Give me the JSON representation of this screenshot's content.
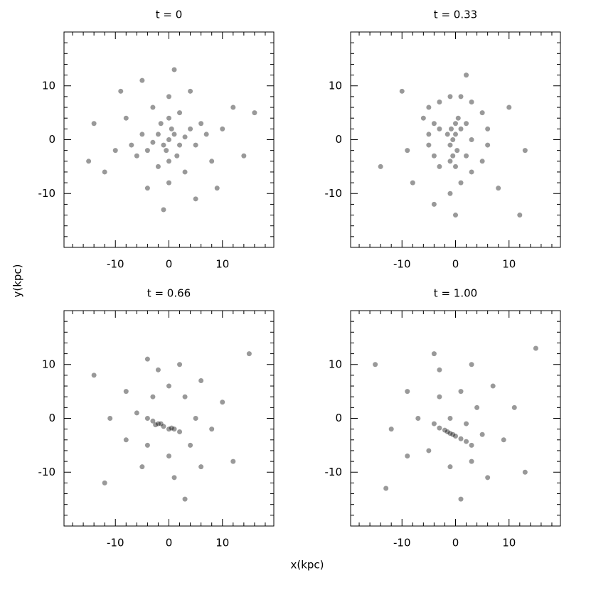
{
  "xlabel": "x(kpc)",
  "ylabel": "y(kpc)",
  "chart_data": [
    {
      "type": "scatter",
      "title": "t = 0",
      "color": "#000000",
      "x": [
        0,
        1,
        -1,
        2,
        -2,
        0.5,
        -0.5,
        3,
        -3,
        1.5,
        -1.5,
        4,
        -4,
        0,
        0,
        5,
        -5,
        2,
        -2,
        6,
        -6,
        3,
        -3,
        7,
        -7,
        0,
        0,
        8,
        -8,
        4,
        -4,
        10,
        -10,
        5,
        -5,
        12,
        -12,
        1,
        -1,
        14,
        -14,
        9,
        -9,
        16,
        -15
      ],
      "values": [
        0,
        1,
        -1,
        -1,
        1,
        2,
        -2,
        0.5,
        -0.5,
        -3,
        3,
        2,
        -2,
        4,
        -4,
        -1,
        1,
        5,
        -5,
        3,
        -3,
        -6,
        6,
        1,
        -1,
        8,
        -8,
        -4,
        4,
        9,
        -9,
        2,
        -2,
        -11,
        11,
        6,
        -6,
        13,
        -13,
        -3,
        3,
        -9,
        9,
        5,
        -4
      ],
      "xlim": [
        -19.6,
        19.6
      ],
      "ylim": [
        -20,
        20
      ],
      "xticks": [
        -10,
        0,
        10
      ],
      "yticks": [
        -10,
        0,
        10
      ],
      "minor_ticks": [
        -18,
        -16,
        -14,
        -12,
        -8,
        -6,
        -4,
        -2,
        2,
        4,
        6,
        8,
        12,
        14,
        16,
        18
      ]
    },
    {
      "type": "scatter",
      "title": "t = 0.33",
      "color": "#000000",
      "x": [
        -0.5,
        0,
        -1,
        0.3,
        -0.8,
        0,
        -0.5,
        0.5,
        -1,
        0,
        1,
        -1.5,
        -3,
        -4,
        -5,
        -5,
        -4,
        -3,
        -6,
        -5,
        -3,
        -1,
        1,
        3,
        5,
        6,
        6,
        5,
        3,
        1,
        -1,
        2,
        3,
        2,
        -9,
        -8,
        0,
        8,
        10,
        2,
        -10,
        -14,
        13,
        -4,
        12
      ],
      "values": [
        0,
        1,
        -1,
        -2,
        2,
        3,
        -3,
        4,
        -4,
        -5,
        2,
        1,
        2,
        3,
        1,
        -1,
        -3,
        -5,
        4,
        6,
        7,
        8,
        8,
        7,
        5,
        2,
        -1,
        -4,
        -6,
        -8,
        -10,
        3,
        0,
        -3,
        -2,
        -8,
        -14,
        -9,
        6,
        12,
        9,
        -5,
        -2,
        -12,
        -14
      ],
      "xlim": [
        -19.6,
        19.6
      ],
      "ylim": [
        -20,
        20
      ],
      "xticks": [
        -10,
        0,
        10
      ],
      "yticks": [
        -10,
        0,
        10
      ],
      "minor_ticks": [
        -18,
        -16,
        -14,
        -12,
        -8,
        -6,
        -4,
        -2,
        2,
        4,
        6,
        8,
        12,
        14,
        16,
        18
      ]
    },
    {
      "type": "scatter",
      "title": "t = 0.66",
      "color": "#000000",
      "x": [
        -1,
        -2,
        0,
        -3,
        1,
        2,
        -4,
        -1.5,
        0.5,
        -2.5,
        -3,
        0,
        3,
        5,
        4,
        0,
        -4,
        -6,
        -2,
        2,
        6,
        8,
        6,
        1,
        -5,
        -8,
        -8,
        -4,
        10,
        -11,
        12,
        -12,
        -14,
        15,
        3
      ],
      "values": [
        -1.5,
        -1,
        -2,
        -0.5,
        -2,
        -2.5,
        0,
        -1,
        -1.8,
        -1.2,
        4,
        6,
        4,
        0,
        -5,
        -7,
        -5,
        1,
        9,
        10,
        7,
        -2,
        -9,
        -11,
        -9,
        -4,
        5,
        11,
        3,
        0,
        -8,
        -12,
        8,
        12,
        -15
      ],
      "xlim": [
        -19.6,
        19.6
      ],
      "ylim": [
        -20,
        20
      ],
      "xticks": [
        -10,
        0,
        10
      ],
      "yticks": [
        -10,
        0,
        10
      ],
      "minor_ticks": [
        -18,
        -16,
        -14,
        -12,
        -8,
        -6,
        -4,
        -2,
        2,
        4,
        6,
        8,
        12,
        14,
        16,
        18
      ]
    },
    {
      "type": "scatter",
      "title": "t = 1.00",
      "color": "#000000",
      "x": [
        -4,
        -3,
        -2,
        -1,
        0,
        1,
        2,
        3,
        -0.5,
        -1.5,
        -3,
        1,
        4,
        5,
        3,
        -1,
        -5,
        -7,
        -3,
        3,
        7,
        9,
        6,
        -9,
        -9,
        -4,
        11,
        -12,
        13,
        -13,
        -15,
        15,
        1,
        -1,
        2
      ],
      "values": [
        -1,
        -1.8,
        -2.2,
        -2.8,
        -3.3,
        -3.8,
        -4.3,
        -5,
        -3,
        -2.5,
        4,
        5,
        2,
        -3,
        -8,
        -9,
        -6,
        0,
        9,
        10,
        6,
        -4,
        -11,
        -7,
        5,
        12,
        2,
        -2,
        -10,
        -13,
        10,
        13,
        -15,
        0,
        -1
      ],
      "xlim": [
        -19.6,
        19.6
      ],
      "ylim": [
        -20,
        20
      ],
      "xticks": [
        -10,
        0,
        10
      ],
      "yticks": [
        -10,
        0,
        10
      ],
      "minor_ticks": [
        -18,
        -16,
        -14,
        -12,
        -8,
        -6,
        -4,
        -2,
        2,
        4,
        6,
        8,
        12,
        14,
        16,
        18
      ]
    }
  ]
}
